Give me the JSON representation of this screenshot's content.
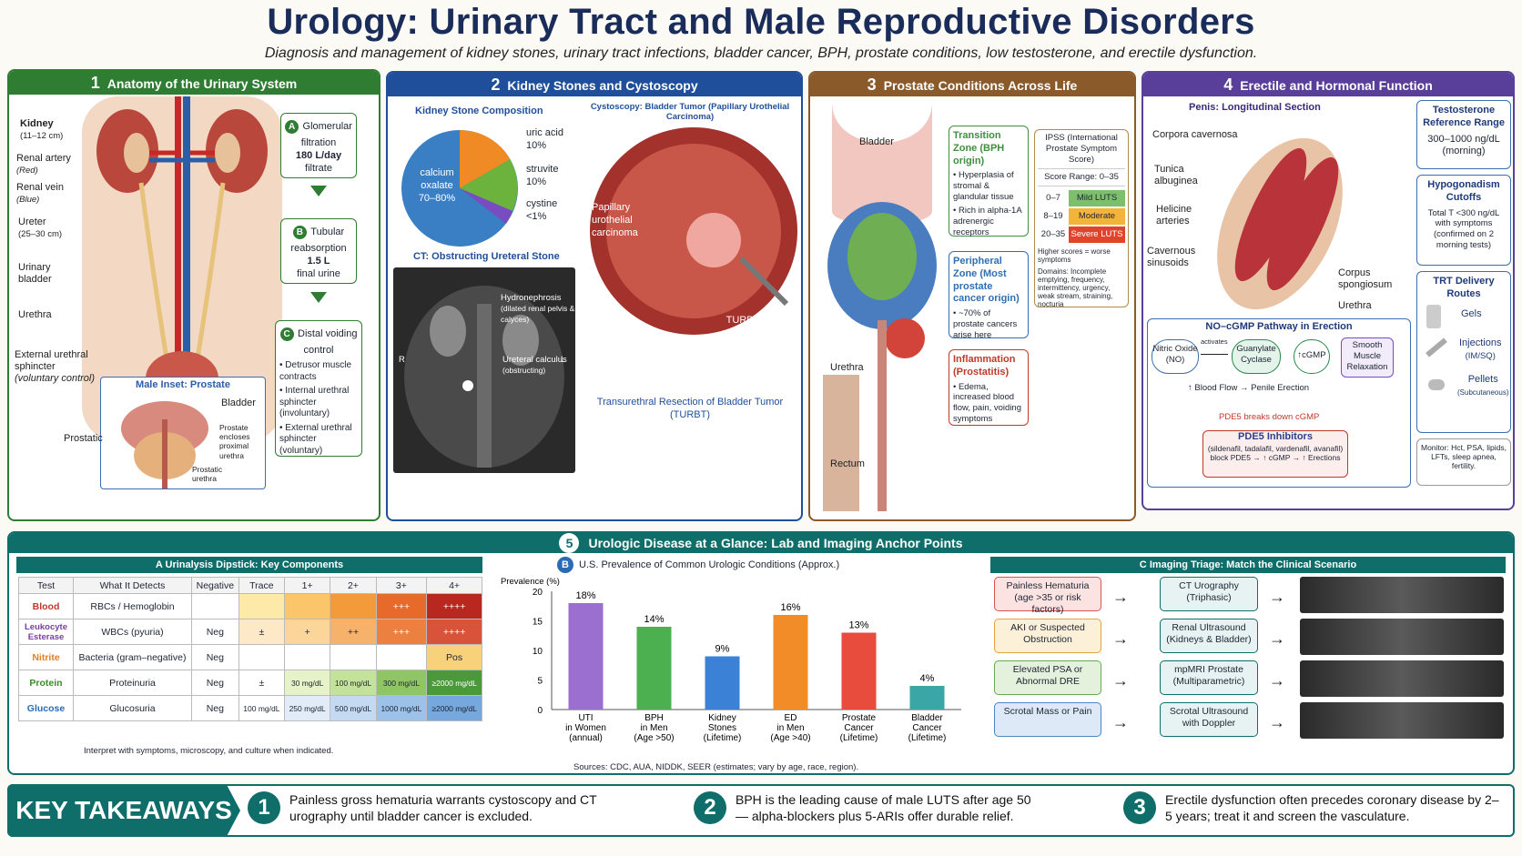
{
  "header": {
    "title": "Urology: Urinary Tract and Male Reproductive Disorders",
    "subtitle": "Diagnosis and management of kidney stones, urinary tract infections, bladder cancer, BPH, prostate conditions, low testosterone, and erectile dysfunction."
  },
  "p1": {
    "num": "1",
    "title": "Anatomy of the Urinary System",
    "labels": {
      "kidney": "Kidney",
      "kidney_size": "(11–12 cm)",
      "artery": "Renal artery",
      "artery_note": "(Red)",
      "vein": "Renal vein",
      "vein_note": "(Blue)",
      "ureter": "Ureter",
      "ureter_size": "(25–30 cm)",
      "bladder": "Urinary bladder",
      "urethra": "Urethra",
      "sphincter": "External urethral sphincter",
      "sphincter_note": "(voluntary control)"
    },
    "steps": [
      {
        "letter": "A",
        "title": "Glomerular filtration",
        "value": "180 L/day",
        "note": "filtrate"
      },
      {
        "letter": "B",
        "title": "Tubular reabsorption",
        "value": "1.5 L",
        "note": "final urine"
      },
      {
        "letter": "C",
        "title": "Distal voiding control",
        "bullets": [
          "Detrusor muscle contracts",
          "Internal urethral sphincter (involuntary)",
          "External urethral sphincter (voluntary)"
        ]
      }
    ],
    "inset": {
      "title": "Male Inset: Prostate",
      "bladder": "Bladder",
      "prostatic": "Prostatic",
      "encloses": "Prostate encloses proximal urethra",
      "prostatic_urethra": "Prostatic urethra"
    }
  },
  "p2": {
    "num": "2",
    "title": "Kidney Stones and Cystoscopy",
    "pie_title": "Kidney Stone Composition",
    "pie": [
      {
        "label": "calcium oxalate",
        "value": "70–80%",
        "color": "#3a7fc4"
      },
      {
        "label": "uric acid",
        "value": "10%",
        "color": "#f08a24"
      },
      {
        "label": "struvite",
        "value": "10%",
        "color": "#6cb33e"
      },
      {
        "label": "cystine",
        "value": "<1%",
        "color": "#7a4cc2"
      }
    ],
    "ct_title": "CT: Obstructing Ureteral Stone",
    "ct_hydro": "Hydronephrosis",
    "ct_hydro_note": "(dilated renal pelvis & calyces)",
    "ct_calc": "Ureteral calculus",
    "ct_calc_note": "(obstructing)",
    "ct_r": "R",
    "ct_l": "L",
    "cysto_title": "Cystoscopy: Bladder Tumor (Papillary Urothelial Carcinoma)",
    "cysto_tumor": "Papillary urothelial carcinoma",
    "cysto_loop": "TURBT resection loop",
    "cysto_caption": "Transurethral Resection of Bladder Tumor (TURBT)"
  },
  "p3": {
    "num": "3",
    "title": "Prostate Conditions Across Life",
    "labels": {
      "bladder": "Bladder",
      "urethra": "Urethra",
      "rectum": "Rectum"
    },
    "zones": [
      {
        "title": "Transition Zone (BPH origin)",
        "bullets": [
          "Hyperplasia of stromal & glandular tissue",
          "Rich in alpha-1A adrenergic receptors"
        ],
        "color": "#3f8f3f"
      },
      {
        "title": "Peripheral Zone (Most prostate cancer origin)",
        "bullets": [
          "~70% of prostate cancers arise here"
        ],
        "color": "#2f6fb3"
      },
      {
        "title": "Inflammation (Prostatitis)",
        "bullets": [
          "Edema, increased blood flow, pain, voiding symptoms"
        ],
        "color": "#c0392b"
      }
    ],
    "ipss": {
      "title": "IPSS (International Prostate Symptom Score)",
      "range": "Score Range: 0–35",
      "rows": [
        {
          "score": "0–7",
          "label": "Mild LUTS",
          "color": "#7cc06b"
        },
        {
          "score": "8–19",
          "label": "Moderate LUTS",
          "color": "#f4b43c"
        },
        {
          "score": "20–35",
          "label": "Severe LUTS",
          "color": "#e0452c"
        }
      ],
      "note": "Higher scores = worse symptoms",
      "domains": "Domains: Incomplete emptying, frequency, intermittency, urgency, weak stream, straining, nocturia"
    }
  },
  "p4": {
    "num": "4",
    "title": "Erectile and Hormonal Function",
    "penis_title": "Penis: Longitudinal Section",
    "labels": {
      "corpora": "Corpora cavernosa",
      "tunica": "Tunica albuginea",
      "helicine": "Helicine arteries",
      "sinusoids": "Cavernous sinusoids",
      "spongiosum": "Corpus spongiosum",
      "urethra": "Urethra"
    },
    "pathway": {
      "title": "NO–cGMP Pathway in Erection",
      "no": "Nitric Oxide (NO)",
      "activates": "activates",
      "gc": "Guanylate Cyclase",
      "cgmp": "↑cGMP",
      "smooth": "Smooth Muscle Relaxation",
      "flow": "↑ Blood Flow → Penile Erection",
      "pde5": "PDE5 breaks down cGMP",
      "inhib_title": "PDE5 Inhibitors",
      "inhib_drugs": "(sildenafil, tadalafil, vardenafil, avanafil)",
      "inhib_effect": "block PDE5 → ↑ cGMP → ↑ Erections"
    },
    "testo": {
      "title": "Testosterone Reference Range",
      "value": "300–1000 ng/dL",
      "note": "(morning)"
    },
    "hypo": {
      "title": "Hypogonadism Cutoffs",
      "text": "Total T <300 ng/dL with symptoms (confirmed on 2 morning tests)"
    },
    "trt": {
      "title": "TRT Delivery Routes",
      "routes": [
        {
          "name": "Gels",
          "sub": ""
        },
        {
          "name": "Injections",
          "sub": "(IM/SQ)"
        },
        {
          "name": "Pellets",
          "sub": "(Subcutaneous)"
        }
      ],
      "monitor": "Monitor: Hct, PSA, lipids, LFTs, sleep apnea, fertility."
    }
  },
  "p5": {
    "num": "5",
    "title": "Urologic Disease at a Glance: Lab and Imaging Anchor Points",
    "a": {
      "letter": "A",
      "title": "Urinalysis Dipstick: Key Components",
      "headers": [
        "Test",
        "What It Detects",
        "Negative",
        "Trace",
        "1+",
        "2+",
        "3+",
        "4+"
      ],
      "rows": [
        {
          "test": "Blood",
          "detects": "RBCs / Hemoglobin",
          "cells": [
            "",
            "",
            "",
            "",
            "+++",
            "++++"
          ],
          "color": "#c0392b"
        },
        {
          "test": "Leukocyte Esterase",
          "detects": "WBCs (pyuria)",
          "cells": [
            "Neg",
            "±",
            "+",
            "++",
            "+++",
            "++++"
          ],
          "color": "#7a3fa0"
        },
        {
          "test": "Nitrite",
          "detects": "Bacteria (gram–negative)",
          "cells": [
            "Neg",
            "",
            "",
            "",
            "",
            "Pos"
          ],
          "color": "#e67e22"
        },
        {
          "test": "Protein",
          "detects": "Proteinuria",
          "cells": [
            "Neg",
            "±",
            "30 mg/dL",
            "100 mg/dL",
            "300 mg/dL",
            "≥2000 mg/dL"
          ],
          "color": "#3a8a2a"
        },
        {
          "test": "Glucose",
          "detects": "Glucosuria",
          "cells": [
            "Neg",
            "100 mg/dL",
            "250 mg/dL",
            "500 mg/dL",
            "1000 mg/dL",
            "≥2000 mg/dL"
          ],
          "color": "#2a6bb5"
        }
      ],
      "note": "Interpret with symptoms, microscopy, and culture when indicated."
    },
    "b": {
      "letter": "B",
      "title": "U.S. Prevalence of Common Urologic Conditions (Approx.)",
      "source": "Sources: CDC, AUA, NIDDK, SEER (estimates; vary by age, race, region)."
    },
    "c": {
      "letter": "C",
      "title": "Imaging Triage: Match the Clinical Scenario",
      "rows": [
        {
          "scenario": "Painless Hematuria (age >35 or risk factors)",
          "modality": "CT Urography (Triphasic)",
          "scolor": "#d9534f",
          "fill": "#fbe3e1"
        },
        {
          "scenario": "AKI or Suspected Obstruction",
          "modality": "Renal Ultrasound (Kidneys & Bladder)",
          "scolor": "#e6a23c",
          "fill": "#fdf0d8"
        },
        {
          "scenario": "Elevated PSA or Abnormal DRE",
          "modality": "mpMRI Prostate (Multiparametric)",
          "scolor": "#6aa84f",
          "fill": "#e4f1dc"
        },
        {
          "scenario": "Scrotal Mass or Pain",
          "modality": "Scrotal Ultrasound with Doppler",
          "scolor": "#4a86c5",
          "fill": "#dde9f6"
        }
      ]
    }
  },
  "takeaways": {
    "title": "KEY TAKEAWAYS",
    "items": [
      {
        "num": "1",
        "text": "Painless gross hematuria warrants cystoscopy and CT urography until bladder cancer is excluded."
      },
      {
        "num": "2",
        "text": "BPH is the leading cause of male LUTS after age 50 — alpha-blockers plus 5-ARIs offer durable relief."
      },
      {
        "num": "3",
        "text": "Erectile dysfunction often precedes coronary disease by 2–5 years; treat it and screen the vasculature."
      }
    ]
  },
  "chart_data": {
    "type": "bar",
    "categories": [
      "UTI in Women (annual)",
      "BPH in Men (Age >50)",
      "Kidney Stones (Lifetime)",
      "ED in Men (Age >40)",
      "Prostate Cancer (Lifetime)",
      "Bladder Cancer (Lifetime)"
    ],
    "values": [
      18,
      14,
      9,
      16,
      13,
      4
    ],
    "labels": [
      "18%",
      "14%",
      "9%",
      "16%",
      "13%",
      "4%"
    ],
    "colors": [
      "#9a6fd0",
      "#4caf50",
      "#3b82d6",
      "#f28c28",
      "#e74c3c",
      "#3aa6a6"
    ],
    "ylabel": "Prevalence (%)",
    "ylim": [
      0,
      20
    ],
    "yticks": [
      0,
      5,
      10,
      15,
      20
    ],
    "grid": false
  }
}
